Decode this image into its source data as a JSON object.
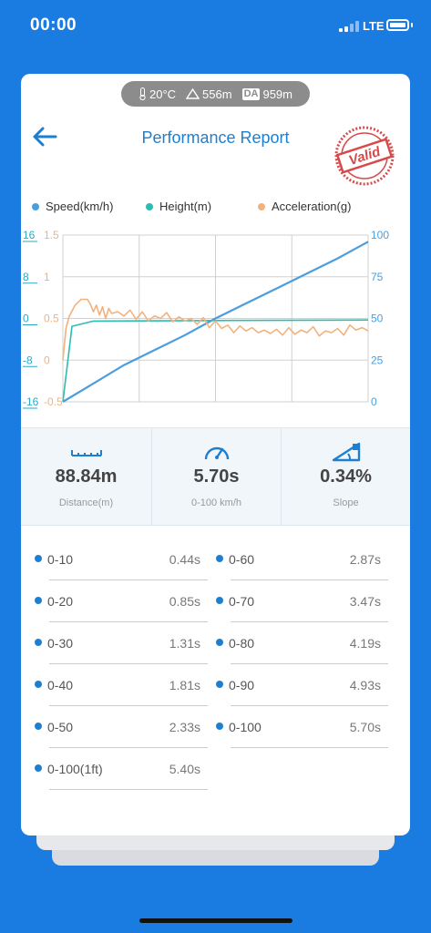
{
  "status_bar": {
    "time": "00:00",
    "network": "LTE"
  },
  "weather": {
    "temperature": "20°C",
    "altitude": "556m",
    "density_label": "DA",
    "density_altitude": "959m"
  },
  "header": {
    "title": "Performance Report",
    "stamp_text": "Valid"
  },
  "chart_data": {
    "type": "line",
    "x_range": [
      0,
      100
    ],
    "y_axes": {
      "height_ticks": [
        "16",
        "8",
        "0",
        "-8",
        "-16"
      ],
      "acceleration_ticks": [
        "1.5",
        "1",
        "0.5",
        "0",
        "-0.5"
      ],
      "speed_ticks": [
        "100",
        "75",
        "50",
        "25",
        "0"
      ],
      "height_range": [
        -16,
        16
      ],
      "acceleration_range": [
        -0.5,
        1.5
      ],
      "speed_range": [
        0,
        100
      ]
    },
    "grid": true,
    "legend_position": "top",
    "series": [
      {
        "name": "Speed(km/h)",
        "color": "#4a9ee0",
        "axis": "speed",
        "x": [
          0,
          10,
          20,
          30,
          40,
          50,
          60,
          70,
          80,
          90,
          100
        ],
        "values": [
          0,
          11,
          22,
          31,
          40,
          50,
          59,
          68,
          77,
          86,
          96
        ]
      },
      {
        "name": "Height(m)",
        "color": "#2cbcb0",
        "axis": "height",
        "x": [
          0,
          3,
          10,
          50,
          100
        ],
        "values": [
          -16,
          -1.5,
          -0.5,
          -0.4,
          -0.3
        ]
      },
      {
        "name": "Acceleration(g)",
        "color": "#f2b27e",
        "axis": "acceleration",
        "x": [
          0,
          1,
          2,
          4,
          6,
          8,
          9,
          10,
          11,
          12,
          13,
          14,
          15,
          16,
          18,
          20,
          22,
          24,
          26,
          28,
          30,
          32,
          34,
          36,
          38,
          40,
          42,
          44,
          46,
          48,
          50,
          52,
          54,
          56,
          58,
          60,
          62,
          64,
          66,
          68,
          70,
          72,
          74,
          76,
          78,
          80,
          82,
          84,
          86,
          88,
          90,
          92,
          94,
          96,
          98,
          100
        ],
        "values": [
          0,
          0.38,
          0.52,
          0.66,
          0.73,
          0.73,
          0.67,
          0.58,
          0.66,
          0.54,
          0.64,
          0.5,
          0.62,
          0.56,
          0.58,
          0.53,
          0.6,
          0.49,
          0.58,
          0.47,
          0.53,
          0.5,
          0.57,
          0.46,
          0.52,
          0.47,
          0.5,
          0.43,
          0.51,
          0.39,
          0.47,
          0.38,
          0.42,
          0.33,
          0.41,
          0.35,
          0.39,
          0.33,
          0.36,
          0.32,
          0.37,
          0.3,
          0.39,
          0.31,
          0.36,
          0.33,
          0.4,
          0.29,
          0.35,
          0.33,
          0.38,
          0.3,
          0.42,
          0.36,
          0.39,
          0.35
        ]
      }
    ]
  },
  "stats": [
    {
      "value": "88.84m",
      "label": "Distance(m)",
      "icon": "ruler-icon"
    },
    {
      "value": "5.70s",
      "label": "0-100 km/h",
      "icon": "speedometer-icon"
    },
    {
      "value": "0.34%",
      "label": "Slope",
      "icon": "slope-icon"
    }
  ],
  "times": {
    "left": [
      {
        "label": "0-10",
        "value": "0.44s"
      },
      {
        "label": "0-20",
        "value": "0.85s"
      },
      {
        "label": "0-30",
        "value": "1.31s"
      },
      {
        "label": "0-40",
        "value": "1.81s"
      },
      {
        "label": "0-50",
        "value": "2.33s"
      },
      {
        "label": "0-100(1ft)",
        "value": "5.40s"
      }
    ],
    "right": [
      {
        "label": "0-60",
        "value": "2.87s"
      },
      {
        "label": "0-70",
        "value": "3.47s"
      },
      {
        "label": "0-80",
        "value": "4.19s"
      },
      {
        "label": "0-90",
        "value": "4.93s"
      },
      {
        "label": "0-100",
        "value": "5.70s"
      }
    ]
  }
}
